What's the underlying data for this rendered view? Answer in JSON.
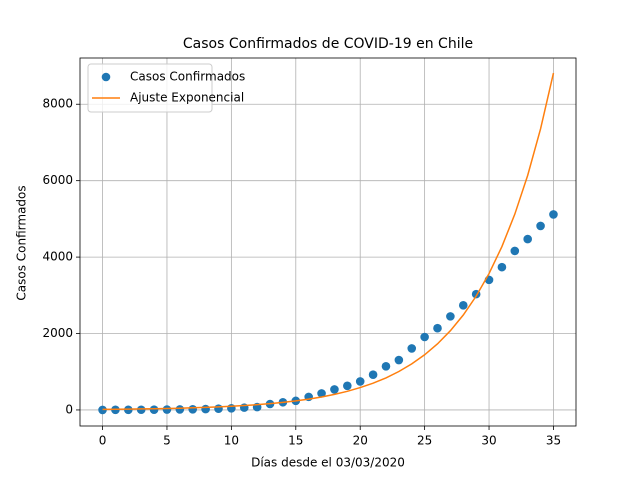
{
  "chart_data": {
    "type": "line",
    "title": "Casos Confirmados de COVID-19 en Chile",
    "xlabel": "Días desde el 03/03/2020",
    "ylabel": "Casos Confirmados",
    "x": [
      0,
      1,
      2,
      3,
      4,
      5,
      6,
      7,
      8,
      9,
      10,
      11,
      12,
      13,
      14,
      15,
      16,
      17,
      18,
      19,
      20,
      21,
      22,
      23,
      24,
      25,
      26,
      27,
      28,
      29,
      30,
      31,
      32,
      33,
      34,
      35
    ],
    "series": [
      {
        "name": "Casos Confirmados",
        "color": "#1f77b4",
        "style": "marker",
        "values": [
          1,
          3,
          4,
          5,
          7,
          11,
          13,
          17,
          23,
          33,
          43,
          61,
          75,
          156,
          201,
          238,
          342,
          434,
          537,
          632,
          746,
          922,
          1142,
          1306,
          1610,
          1909,
          2139,
          2449,
          2738,
          3031,
          3404,
          3737,
          4161,
          4471,
          4815,
          5116
        ]
      },
      {
        "name": "Ajuste Exponencial",
        "color": "#ff7f0e",
        "style": "line",
        "values": [
          16,
          19,
          23,
          27,
          32,
          39,
          46,
          56,
          67,
          80,
          96,
          115,
          138,
          165,
          198,
          237,
          284,
          340,
          407,
          488,
          585,
          701,
          839,
          1006,
          1205,
          1444,
          1730,
          2074,
          2485,
          2978,
          3569,
          4275,
          5123,
          6139,
          7357,
          8816
        ]
      }
    ],
    "xlim": [
      -1.75,
      36.75
    ],
    "ylim": [
      -420,
      9210
    ],
    "xticks": [
      0,
      5,
      10,
      15,
      20,
      25,
      30,
      35
    ],
    "yticks": [
      0,
      2000,
      4000,
      6000,
      8000
    ],
    "grid": true,
    "legend": "upper-left"
  }
}
